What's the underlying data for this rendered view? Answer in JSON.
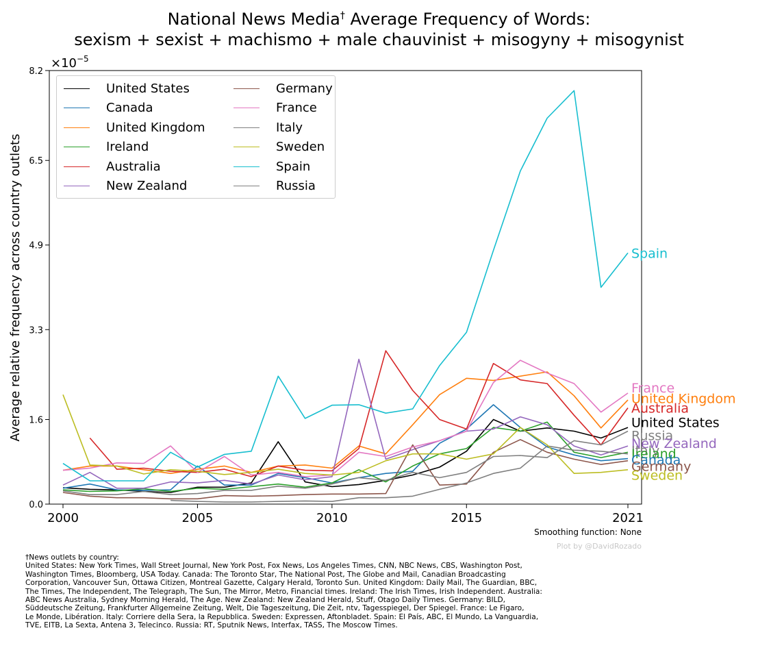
{
  "title": {
    "line1_text": "National News Media",
    "line1_sup": "†",
    "line1_rest": " Average Frequency of Words:",
    "line2": "sexism + sexist + machismo + male chauvinist + misogyny + misogynist"
  },
  "smoothing_note": "Smoothing function: None",
  "credit": "Plot by @DavidRozado",
  "footnote": [
    "†News outlets by country:",
    "United States: New York Times, Wall Street Journal, New York Post, Fox News, Los Angeles Times, CNN, NBC News, CBS, Washington Post,",
    "Washington Times, Bloomberg, USA Today. Canada: The Toronto Star, The National Post, The Globe and Mail, Canadian Broadcasting",
    "Corporation, Vancouver Sun, Ottawa Citizen, Montreal Gazette, Calgary Herald, Toronto Sun. United Kingdom: Daily Mail, The Guardian, BBC,",
    "The Times, The Independent, The Telegraph, The Sun, The Mirror, Metro, Financial times. Ireland: The Irish Times, Irish Independent. Australia:",
    "ABC News Australia, Sydney Morning Herald, The Age. New Zealand: New Zealand Herald, Stuff, Otago Daily Times. Germany: BILD,",
    "Süddeutsche Zeitung, Frankfurter Allgemeine Zeitung, Welt, Die Tageszeitung, Die Zeit, ntv, Tagesspiegel, Der Spiegel. France: Le Figaro,",
    "Le Monde, Libération. Italy: Corriere della Sera, la Repubblica. Sweden: Expressen, Aftonbladet. Spain: El País, ABC, El Mundo, La Vanguardia,",
    "TVE, EITB, La Sexta, Antena 3, Telecinco. Russia: RT, Sputnik News, Interfax, TASS, The Moscow Times."
  ],
  "chart_data": {
    "type": "line",
    "ylabel": "Average relative frequency across country outlets",
    "xlabel": "",
    "y_scale_label": "×10",
    "y_scale_exp": "−5",
    "xlim": [
      2000,
      2021
    ],
    "ylim": [
      0,
      8.2
    ],
    "xticks": [
      2000,
      2005,
      2010,
      2015,
      2021
    ],
    "yticks": [
      0.0,
      1.6,
      3.3,
      4.9,
      6.5,
      8.2
    ],
    "ytick_labels": [
      "0.0",
      "1.6",
      "3.3",
      "4.9",
      "6.5",
      "8.2"
    ],
    "grid": false,
    "legend_position": "top-left",
    "series": [
      {
        "name": "United States",
        "color": "#000000",
        "x": [
          2000,
          2001,
          2002,
          2003,
          2004,
          2005,
          2006,
          2007,
          2008,
          2009,
          2010,
          2011,
          2012,
          2013,
          2014,
          2015,
          2016,
          2017,
          2018,
          2019,
          2020,
          2021
        ],
        "values": [
          0.31,
          0.28,
          0.27,
          0.24,
          0.22,
          0.32,
          0.32,
          0.4,
          1.18,
          0.42,
          0.33,
          0.37,
          0.45,
          0.55,
          0.7,
          1.0,
          1.6,
          1.38,
          1.44,
          1.38,
          1.25,
          1.45
        ]
      },
      {
        "name": "Canada",
        "color": "#1f77b4",
        "x": [
          2000,
          2001,
          2002,
          2003,
          2004,
          2005,
          2006,
          2007,
          2008,
          2009,
          2010,
          2011,
          2012,
          2013,
          2014,
          2015,
          2016,
          2017,
          2018,
          2019,
          2020,
          2021
        ],
        "values": [
          0.3,
          0.38,
          0.27,
          0.26,
          0.27,
          0.72,
          0.36,
          0.36,
          0.58,
          0.5,
          0.4,
          0.5,
          0.58,
          0.62,
          1.15,
          1.42,
          1.88,
          1.45,
          1.08,
          0.93,
          0.82,
          0.86
        ]
      },
      {
        "name": "United Kingdom",
        "color": "#ff7f0e",
        "x": [
          2000,
          2001,
          2002,
          2003,
          2004,
          2005,
          2006,
          2007,
          2008,
          2009,
          2010,
          2011,
          2012,
          2013,
          2014,
          2015,
          2016,
          2017,
          2018,
          2019,
          2020,
          2021
        ],
        "values": [
          0.64,
          0.72,
          0.72,
          0.65,
          0.58,
          0.66,
          0.72,
          0.6,
          0.72,
          0.74,
          0.68,
          1.1,
          0.95,
          1.5,
          2.07,
          2.38,
          2.34,
          2.42,
          2.5,
          2.05,
          1.44,
          1.97
        ]
      },
      {
        "name": "Ireland",
        "color": "#2ca02c",
        "x": [
          2000,
          2001,
          2002,
          2003,
          2004,
          2005,
          2006,
          2007,
          2008,
          2009,
          2010,
          2011,
          2012,
          2013,
          2014,
          2015,
          2016,
          2017,
          2018,
          2019,
          2020,
          2021
        ],
        "values": [
          0.27,
          0.24,
          0.25,
          0.29,
          0.24,
          0.3,
          0.28,
          0.33,
          0.38,
          0.32,
          0.4,
          0.65,
          0.42,
          0.72,
          0.95,
          1.05,
          1.45,
          1.38,
          1.55,
          0.98,
          0.88,
          0.98
        ]
      },
      {
        "name": "Australia",
        "color": "#d62728",
        "x": [
          2001,
          2002,
          2003,
          2004,
          2005,
          2006,
          2007,
          2008,
          2009,
          2010,
          2011,
          2012,
          2013,
          2014,
          2015,
          2016,
          2017,
          2018,
          2019,
          2020,
          2021
        ],
        "values": [
          1.25,
          0.66,
          0.68,
          0.62,
          0.6,
          0.66,
          0.52,
          0.72,
          0.64,
          0.63,
          1.05,
          2.9,
          2.15,
          1.6,
          1.42,
          2.66,
          2.35,
          2.28,
          1.68,
          1.12,
          1.82
        ]
      },
      {
        "name": "New Zealand",
        "color": "#9467bd",
        "x": [
          2000,
          2001,
          2002,
          2003,
          2004,
          2005,
          2006,
          2007,
          2008,
          2009,
          2010,
          2011,
          2012,
          2013,
          2014,
          2015,
          2016,
          2017,
          2018,
          2019,
          2020,
          2021
        ],
        "values": [
          0.36,
          0.6,
          0.3,
          0.3,
          0.42,
          0.4,
          0.45,
          0.38,
          0.55,
          0.46,
          0.52,
          2.74,
          0.85,
          1.03,
          1.2,
          1.38,
          1.42,
          1.65,
          1.5,
          1.1,
          0.93,
          1.1
        ]
      },
      {
        "name": "Germany",
        "color": "#8c564b",
        "x": [
          2000,
          2001,
          2002,
          2003,
          2004,
          2005,
          2006,
          2007,
          2008,
          2009,
          2010,
          2011,
          2012,
          2013,
          2014,
          2015,
          2016,
          2017,
          2018,
          2019,
          2020,
          2021
        ],
        "values": [
          0.22,
          0.15,
          0.12,
          0.12,
          0.1,
          0.1,
          0.16,
          0.15,
          0.16,
          0.18,
          0.19,
          0.19,
          0.2,
          1.12,
          0.36,
          0.38,
          0.98,
          1.22,
          0.98,
          0.85,
          0.75,
          0.82
        ]
      },
      {
        "name": "France",
        "color": "#e377c2",
        "x": [
          2000,
          2001,
          2002,
          2003,
          2004,
          2005,
          2006,
          2007,
          2008,
          2009,
          2010,
          2011,
          2012,
          2013,
          2014,
          2015,
          2016,
          2017,
          2018,
          2019,
          2020,
          2021
        ],
        "values": [
          0.64,
          0.68,
          0.78,
          0.77,
          1.1,
          0.6,
          0.9,
          0.55,
          0.6,
          0.52,
          0.55,
          0.98,
          0.9,
          1.08,
          1.2,
          1.38,
          2.3,
          2.72,
          2.48,
          2.28,
          1.74,
          2.1
        ]
      },
      {
        "name": "Italy",
        "color": "#7f7f7f",
        "x": [
          2004,
          2005,
          2006,
          2007,
          2008,
          2009,
          2010,
          2011,
          2012,
          2013,
          2014,
          2015,
          2016,
          2017,
          2018,
          2019,
          2020,
          2021
        ],
        "values": [
          0.07,
          0.05,
          0.04,
          0.04,
          0.05,
          0.06,
          0.05,
          0.12,
          0.12,
          0.15,
          0.28,
          0.4,
          0.58,
          0.68,
          1.1,
          1.02,
          1.0,
          0.95
        ]
      },
      {
        "name": "Sweden",
        "color": "#bcbd22",
        "x": [
          2000,
          2001,
          2002,
          2003,
          2004,
          2005,
          2006,
          2007,
          2008,
          2009,
          2010,
          2011,
          2012,
          2013,
          2014,
          2015,
          2016,
          2017,
          2018,
          2019,
          2020,
          2021
        ],
        "values": [
          2.07,
          0.74,
          0.72,
          0.57,
          0.65,
          0.62,
          0.56,
          0.6,
          0.66,
          0.58,
          0.55,
          0.6,
          0.82,
          0.95,
          0.95,
          0.85,
          0.95,
          1.45,
          1.12,
          0.58,
          0.6,
          0.65
        ]
      },
      {
        "name": "Spain",
        "color": "#17becf",
        "x": [
          2000,
          2001,
          2002,
          2003,
          2004,
          2005,
          2006,
          2007,
          2008,
          2009,
          2010,
          2011,
          2012,
          2013,
          2014,
          2015,
          2016,
          2017,
          2018,
          2019,
          2020,
          2021
        ],
        "values": [
          0.77,
          0.44,
          0.44,
          0.44,
          0.98,
          0.7,
          0.94,
          1.0,
          2.42,
          1.62,
          1.87,
          1.88,
          1.72,
          1.8,
          2.62,
          3.25,
          4.8,
          6.3,
          7.3,
          7.82,
          4.1,
          4.75
        ]
      },
      {
        "name": "Russia",
        "color": "#7f7f7f",
        "x": [
          2000,
          2001,
          2002,
          2003,
          2004,
          2005,
          2006,
          2007,
          2008,
          2009,
          2010,
          2011,
          2012,
          2013,
          2014,
          2015,
          2016,
          2017,
          2018,
          2019,
          2020,
          2021
        ],
        "values": [
          0.25,
          0.18,
          0.18,
          0.24,
          0.18,
          0.2,
          0.26,
          0.26,
          0.34,
          0.3,
          0.38,
          0.5,
          0.45,
          0.6,
          0.5,
          0.6,
          0.9,
          0.92,
          0.88,
          1.2,
          1.12,
          1.38
        ]
      }
    ],
    "end_labels": [
      {
        "text": "Spain",
        "color": "#17becf",
        "value": 4.75
      },
      {
        "text": "France",
        "color": "#e377c2",
        "value": 2.2
      },
      {
        "text": "United Kingdom",
        "color": "#ff7f0e",
        "value": 2.0
      },
      {
        "text": "Australia",
        "color": "#d62728",
        "value": 1.82
      },
      {
        "text": "United States",
        "color": "#000000",
        "value": 1.55
      },
      {
        "text": "Russia",
        "color": "#7f7f7f",
        "value": 1.3
      },
      {
        "text": "New Zealand",
        "color": "#9467bd",
        "value": 1.15
      },
      {
        "text": "Italy",
        "color": "#7f7f7f",
        "value": 1.02
      },
      {
        "text": "Ireland",
        "color": "#2ca02c",
        "value": 0.96
      },
      {
        "text": "Canada",
        "color": "#1f77b4",
        "value": 0.84
      },
      {
        "text": "Germany",
        "color": "#8c564b",
        "value": 0.72
      },
      {
        "text": "Sweden",
        "color": "#bcbd22",
        "value": 0.55
      }
    ]
  }
}
